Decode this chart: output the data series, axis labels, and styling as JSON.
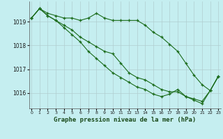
{
  "title": "Graphe pression niveau de la mer (hPa)",
  "background_color": "#c5eef0",
  "grid_color": "#b0cdd0",
  "line_color": "#1a6b1a",
  "x": [
    0,
    1,
    2,
    3,
    4,
    5,
    6,
    7,
    8,
    9,
    10,
    11,
    12,
    13,
    14,
    15,
    16,
    17,
    18,
    19,
    20,
    21,
    22,
    23
  ],
  "series1": [
    1019.15,
    1019.55,
    1019.35,
    1019.25,
    1019.15,
    1019.15,
    1019.05,
    1019.15,
    1019.35,
    1019.15,
    1019.05,
    1019.05,
    1019.05,
    1019.05,
    1018.85,
    1018.55,
    1018.35,
    1018.05,
    1017.75,
    1017.25,
    1016.75,
    1016.35,
    1016.1,
    1016.7
  ],
  "series2": [
    1019.15,
    1019.55,
    1019.25,
    1019.05,
    1018.85,
    1018.65,
    1018.35,
    1018.15,
    1017.95,
    1017.75,
    1017.65,
    1017.25,
    1016.85,
    1016.65,
    1016.55,
    1016.35,
    1016.15,
    1016.05,
    1016.05,
    1015.85,
    1015.75,
    1015.65,
    1016.1,
    1016.7
  ],
  "series3": [
    1019.15,
    1019.55,
    1019.25,
    1019.05,
    1018.75,
    1018.45,
    1018.15,
    1017.75,
    1017.45,
    1017.15,
    1016.85,
    1016.65,
    1016.45,
    1016.25,
    1016.15,
    1015.95,
    1015.85,
    1015.95,
    1016.15,
    1015.85,
    1015.7,
    1015.55,
    1016.1,
    1016.7
  ],
  "ylim": [
    1015.35,
    1019.85
  ],
  "yticks": [
    1016,
    1017,
    1018,
    1019
  ],
  "xlim": [
    -0.3,
    23.3
  ]
}
